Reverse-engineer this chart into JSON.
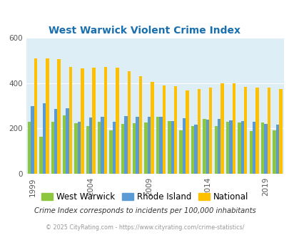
{
  "title": "West Warwick Violent Crime Index",
  "years": [
    1999,
    2000,
    2001,
    2002,
    2003,
    2004,
    2005,
    2006,
    2007,
    2008,
    2009,
    2010,
    2011,
    2012,
    2013,
    2014,
    2015,
    2016,
    2017,
    2018,
    2019,
    2020
  ],
  "west_warwick": [
    228,
    165,
    228,
    258,
    222,
    210,
    228,
    193,
    220,
    222,
    225,
    250,
    233,
    192,
    210,
    243,
    210,
    228,
    225,
    188,
    225,
    192
  ],
  "rhode_island": [
    300,
    312,
    285,
    288,
    228,
    248,
    250,
    228,
    253,
    250,
    250,
    250,
    233,
    245,
    218,
    240,
    242,
    235,
    232,
    228,
    220,
    218
  ],
  "national": [
    507,
    507,
    505,
    472,
    465,
    467,
    472,
    467,
    453,
    430,
    405,
    390,
    387,
    367,
    375,
    380,
    400,
    398,
    383,
    380,
    379,
    375
  ],
  "colors": {
    "west_warwick": "#8dc63f",
    "rhode_island": "#5b9bd5",
    "national": "#ffc000"
  },
  "ylim": [
    0,
    600
  ],
  "yticks": [
    0,
    200,
    400,
    600
  ],
  "xtick_labels": [
    "1999",
    "2004",
    "2009",
    "2014",
    "2019"
  ],
  "xtick_positions": [
    1999,
    2004,
    2009,
    2014,
    2019
  ],
  "plot_bg": "#deeef6",
  "legend": [
    "West Warwick",
    "Rhode Island",
    "National"
  ],
  "note": "Crime Index corresponds to incidents per 100,000 inhabitants",
  "footer": "© 2025 CityRating.com - https://www.cityrating.com/crime-statistics/"
}
